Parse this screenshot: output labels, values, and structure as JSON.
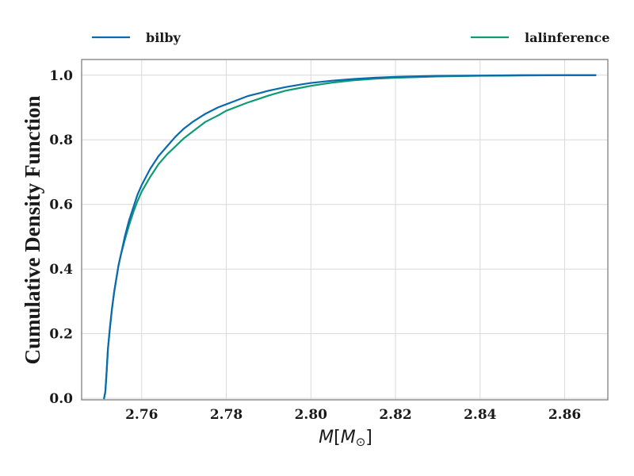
{
  "chart_data": {
    "type": "line",
    "title": "",
    "xlabel": "M[M⊙]",
    "xlabel_parts": {
      "symbol": "M",
      "open": "[",
      "unit": "M",
      "sub": "⊙",
      "close": "]"
    },
    "ylabel": "Cumulative Density Function",
    "xlim": [
      2.7458,
      2.8702
    ],
    "ylim": [
      -0.0045,
      1.0485
    ],
    "xticks": [
      2.76,
      2.78,
      2.8,
      2.82,
      2.84,
      2.86
    ],
    "xtick_labels": [
      "2.76",
      "2.78",
      "2.80",
      "2.82",
      "2.84",
      "2.86"
    ],
    "yticks": [
      0.0,
      0.2,
      0.4,
      0.6,
      0.8,
      1.0
    ],
    "ytick_labels": [
      "0.0",
      "0.2",
      "0.4",
      "0.6",
      "0.8",
      "1.0"
    ],
    "grid": true,
    "legend_position": "top, above plot",
    "series": [
      {
        "name": "bilby",
        "color": "#0b6aaf",
        "x": [
          2.7511,
          2.7514,
          2.7517,
          2.752,
          2.7525,
          2.753,
          2.7535,
          2.754,
          2.7545,
          2.755,
          2.7555,
          2.756,
          2.757,
          2.758,
          2.759,
          2.76,
          2.762,
          2.764,
          2.766,
          2.768,
          2.77,
          2.772,
          2.775,
          2.778,
          2.78,
          2.782,
          2.785,
          2.788,
          2.79,
          2.794,
          2.798,
          2.8,
          2.805,
          2.81,
          2.815,
          2.82,
          2.83,
          2.84,
          2.85,
          2.86,
          2.8673
        ],
        "y": [
          0.0,
          0.02,
          0.08,
          0.15,
          0.22,
          0.28,
          0.33,
          0.37,
          0.41,
          0.44,
          0.47,
          0.5,
          0.55,
          0.59,
          0.63,
          0.66,
          0.71,
          0.75,
          0.78,
          0.81,
          0.835,
          0.855,
          0.88,
          0.9,
          0.91,
          0.92,
          0.935,
          0.945,
          0.952,
          0.963,
          0.972,
          0.976,
          0.983,
          0.988,
          0.992,
          0.995,
          0.998,
          0.999,
          1.0,
          1.0,
          1.0
        ]
      },
      {
        "name": "lalinference",
        "color": "#0e9b73",
        "x": [
          2.7511,
          2.7514,
          2.7517,
          2.752,
          2.7525,
          2.753,
          2.7535,
          2.754,
          2.7545,
          2.755,
          2.7555,
          2.756,
          2.757,
          2.758,
          2.759,
          2.76,
          2.762,
          2.764,
          2.766,
          2.768,
          2.77,
          2.772,
          2.775,
          2.778,
          2.78,
          2.782,
          2.785,
          2.788,
          2.79,
          2.794,
          2.798,
          2.8,
          2.805,
          2.81,
          2.815,
          2.82,
          2.83,
          2.84,
          2.85,
          2.86,
          2.8673
        ],
        "y": [
          0.0,
          0.02,
          0.08,
          0.15,
          0.22,
          0.28,
          0.33,
          0.37,
          0.41,
          0.44,
          0.465,
          0.49,
          0.535,
          0.575,
          0.61,
          0.64,
          0.685,
          0.725,
          0.755,
          0.78,
          0.805,
          0.825,
          0.855,
          0.875,
          0.89,
          0.9,
          0.915,
          0.928,
          0.937,
          0.952,
          0.962,
          0.967,
          0.977,
          0.984,
          0.989,
          0.992,
          0.996,
          0.998,
          0.999,
          1.0,
          1.0
        ]
      }
    ]
  }
}
